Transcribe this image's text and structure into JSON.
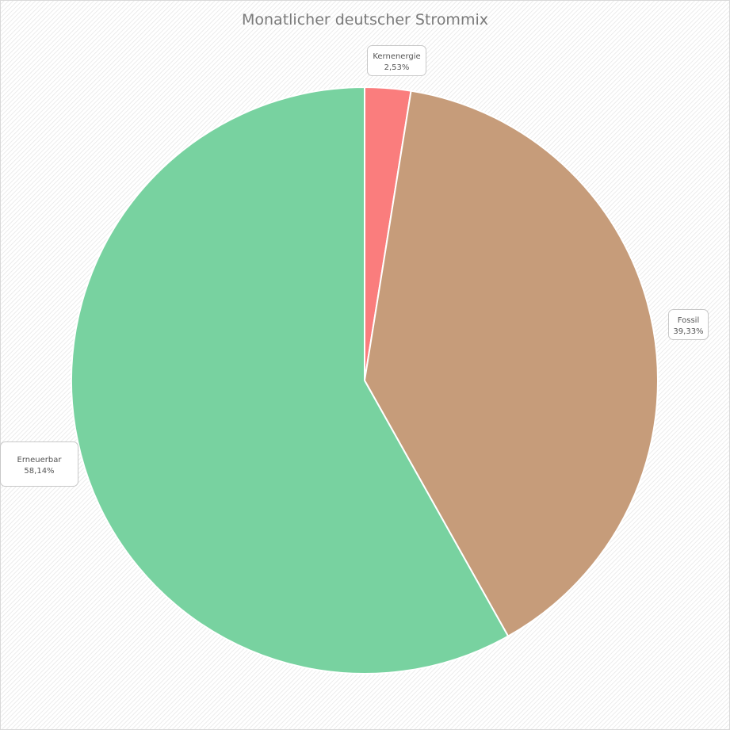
{
  "chart_data": {
    "type": "pie",
    "title": "Monatlicher deutscher Strommix",
    "slices": [
      {
        "name": "Kernenergie",
        "value": 2.53,
        "value_label": "2,53%",
        "color": "#fa7d7d"
      },
      {
        "name": "Fossil",
        "value": 39.33,
        "value_label": "39,33%",
        "color": "#c69c7a"
      },
      {
        "name": "Erneuerbar",
        "value": 58.14,
        "value_label": "58,14%",
        "color": "#78d2a0"
      }
    ],
    "start_angle": "top",
    "direction": "clockwise",
    "data_labels": true
  }
}
